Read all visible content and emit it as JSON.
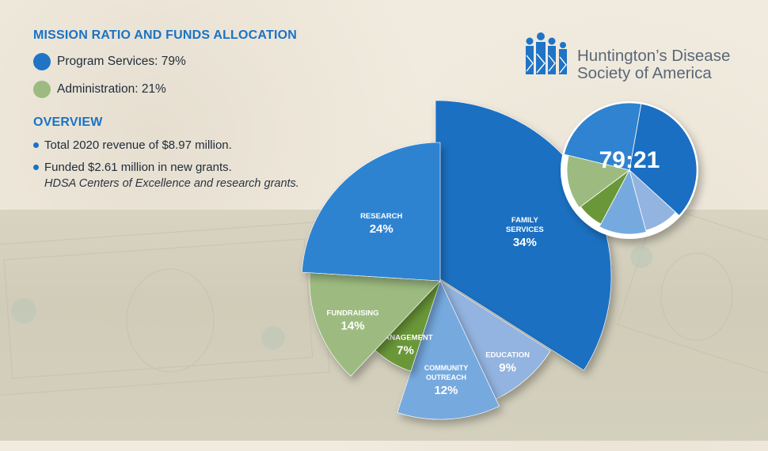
{
  "mission_title": "MISSION RATIO AND FUNDS ALLOCATION",
  "legend": [
    {
      "label": "Program Services: 79%",
      "color": "#1f74c6"
    },
    {
      "label": "Administration: 21%",
      "color": "#9dbb80"
    }
  ],
  "overview_title": "OVERVIEW",
  "overview_items": [
    "Total 2020 revenue of $8.97 million.",
    "Funded $2.61 million in new grants."
  ],
  "overview_note": "HDSA Centers of Excellence and research grants.",
  "logo": {
    "line1": "Huntington’s Disease",
    "line2": "Society of America",
    "icon": "hdsa-people-logo-icon"
  },
  "chart_data": [
    {
      "type": "pie",
      "title": "",
      "slices": [
        {
          "label": [
            "FAMILY",
            "SERVICES"
          ],
          "value": 34,
          "pct": "34%",
          "color": "#1a6fc2"
        },
        {
          "label": [
            "EDUCATION"
          ],
          "value": 9,
          "pct": "9%",
          "color": "#93b3e0"
        },
        {
          "label": [
            "COMMUNITY",
            "OUTREACH"
          ],
          "value": 12,
          "pct": "12%",
          "color": "#76aadf"
        },
        {
          "label": [
            "MANAGEMENT"
          ],
          "value": 7,
          "pct": "7%",
          "color": "#6a9737"
        },
        {
          "label": [
            "FUNDRAISING"
          ],
          "value": 14,
          "pct": "14%",
          "color": "#9dbb80"
        },
        {
          "label": [
            "RESEARCH"
          ],
          "value": 24,
          "pct": "24%",
          "color": "#2f83d1"
        }
      ]
    },
    {
      "type": "pie",
      "title": "79:21",
      "slices": [
        {
          "value": 34,
          "color": "#1a6fc2"
        },
        {
          "value": 9,
          "color": "#93b3e0"
        },
        {
          "value": 12,
          "color": "#76aadf"
        },
        {
          "value": 7,
          "color": "#6a9737"
        },
        {
          "value": 14,
          "color": "#9dbb80"
        },
        {
          "value": 24,
          "color": "#2f83d1"
        }
      ]
    }
  ]
}
